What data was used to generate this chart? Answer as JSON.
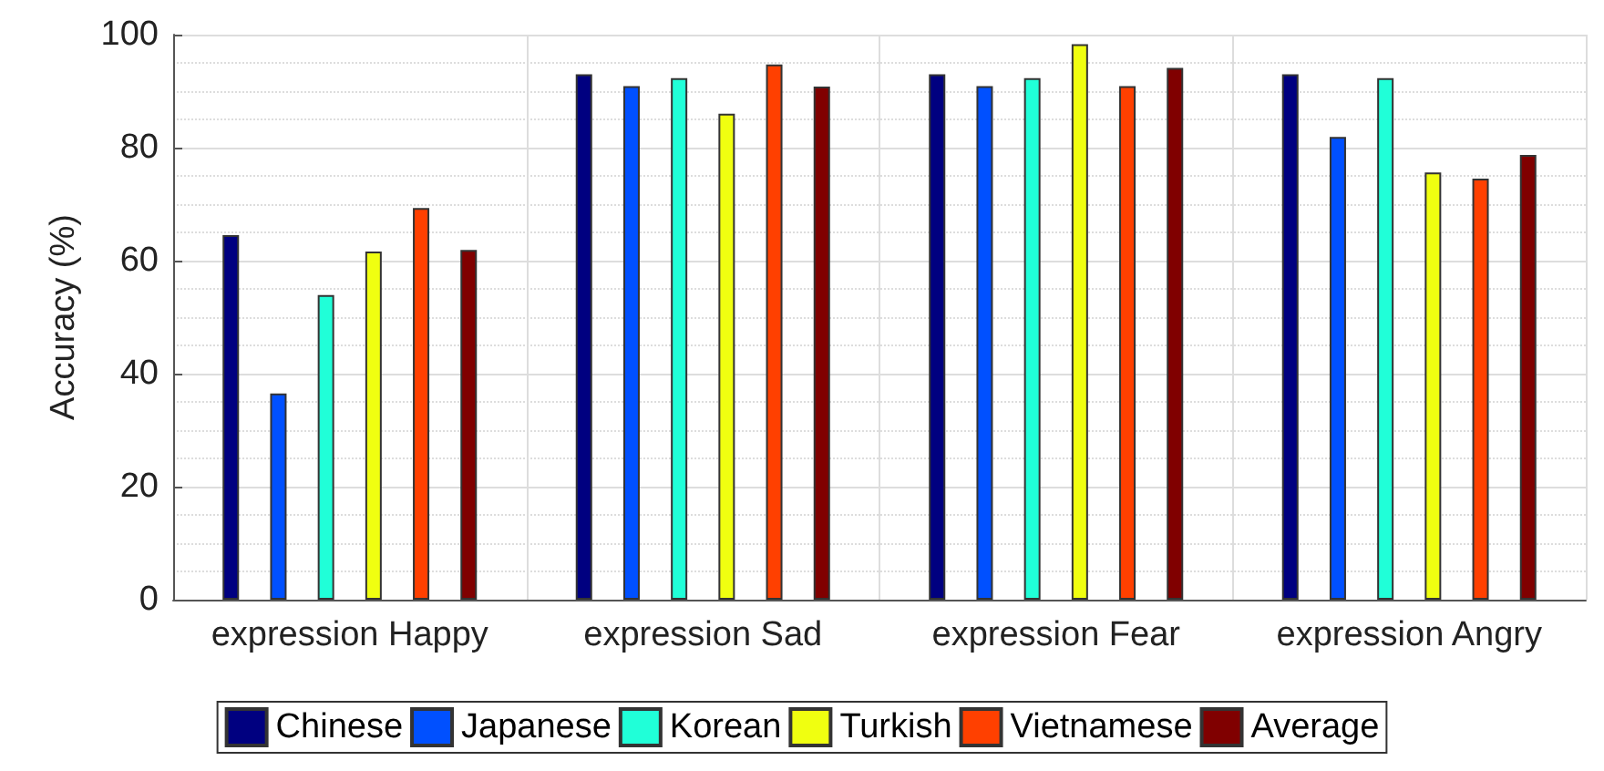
{
  "chart_data": {
    "type": "bar",
    "ylabel": "Accuracy (%)",
    "categories": [
      "expression Happy",
      "expression Sad",
      "expression Fear",
      "expression Angry"
    ],
    "series": [
      {
        "name": "Chinese",
        "color": "#000080",
        "values": [
          64.5,
          93.0,
          93.0,
          93.0
        ]
      },
      {
        "name": "Japanese",
        "color": "#0050ff",
        "values": [
          36.5,
          90.9,
          90.9,
          81.9
        ]
      },
      {
        "name": "Korean",
        "color": "#20ffd8",
        "values": [
          53.9,
          92.3,
          92.3,
          92.3
        ]
      },
      {
        "name": "Turkish",
        "color": "#f0ff10",
        "values": [
          61.6,
          86.0,
          98.3,
          75.6
        ]
      },
      {
        "name": "Vietnamese",
        "color": "#ff4000",
        "values": [
          69.3,
          94.7,
          90.9,
          74.5
        ]
      },
      {
        "name": "Average",
        "color": "#800000",
        "values": [
          61.9,
          90.8,
          94.1,
          78.7
        ]
      }
    ],
    "ylim": [
      0,
      100
    ],
    "yticks": [
      0,
      20,
      40,
      60,
      80,
      100
    ],
    "grid": true,
    "legend": "bottom"
  }
}
